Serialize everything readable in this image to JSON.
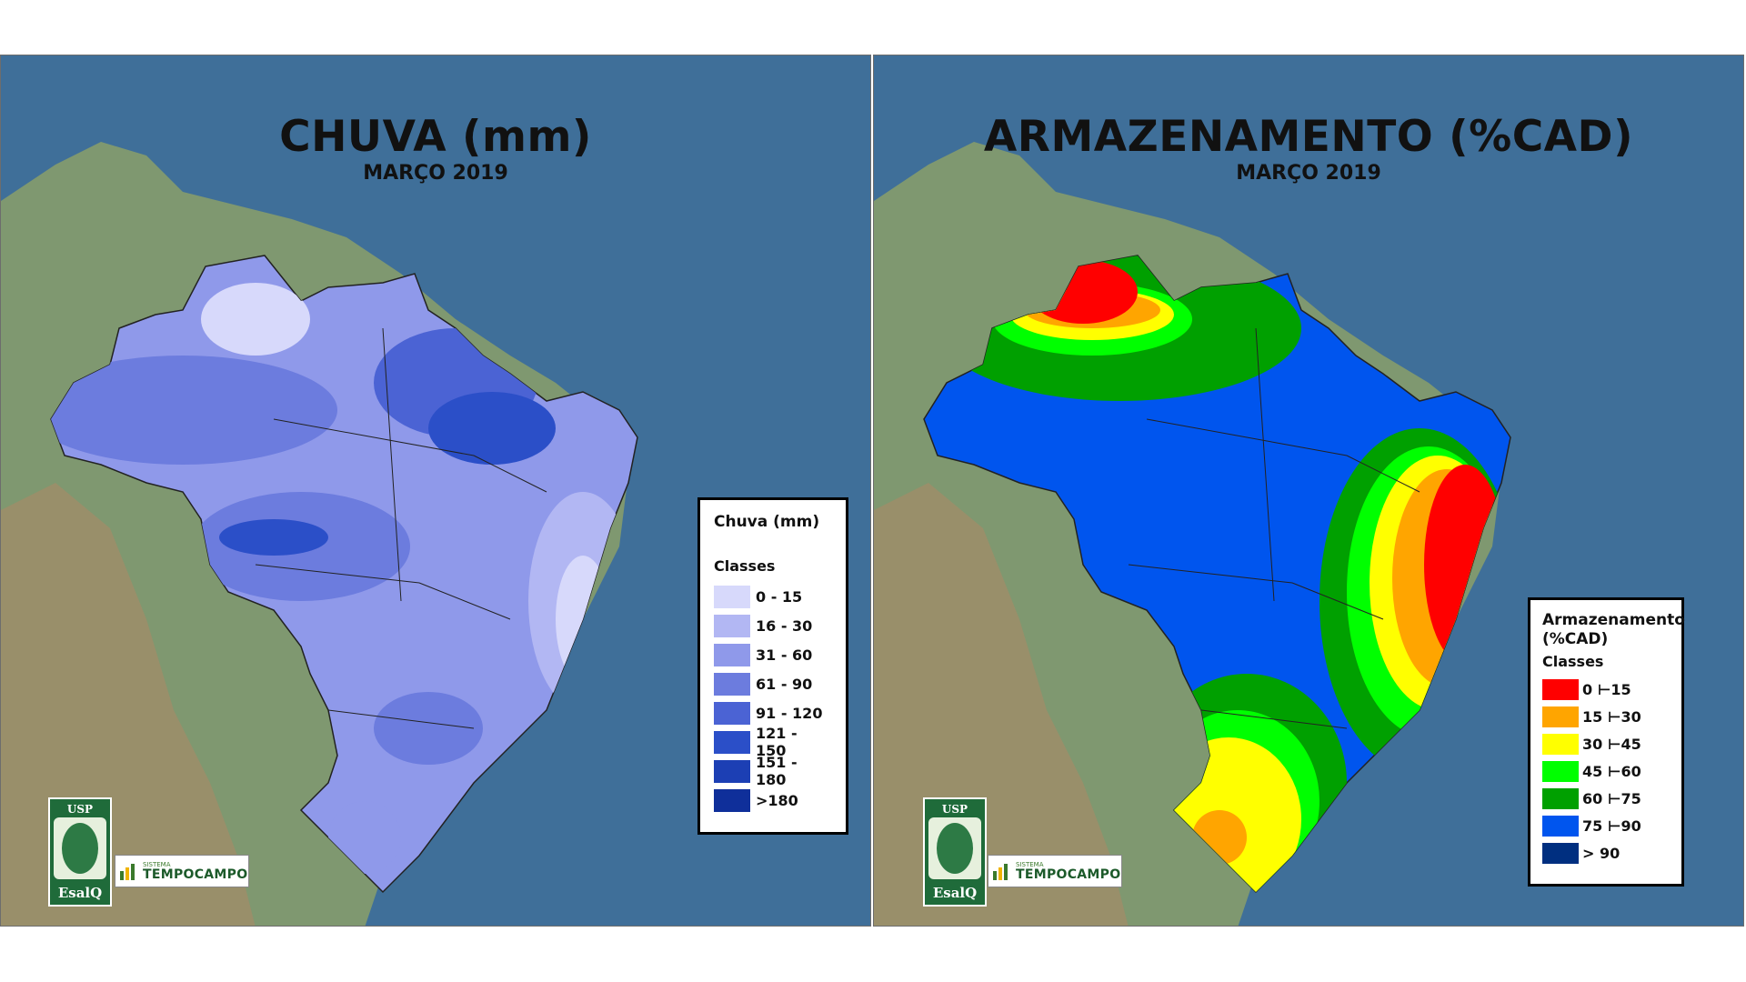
{
  "left_map": {
    "title": "CHUVA (mm)",
    "subtitle": "MARÇO 2019",
    "legend": {
      "title": "Chuva (mm)",
      "classes_label": "Classes",
      "items": [
        {
          "label": "0 - 15",
          "color": "#d7d9fb"
        },
        {
          "label": "16 - 30",
          "color": "#b2b7f3"
        },
        {
          "label": "31 - 60",
          "color": "#8f99ea"
        },
        {
          "label": "61 - 90",
          "color": "#6c7cde"
        },
        {
          "label": "91 - 120",
          "color": "#4b63d4"
        },
        {
          "label": "121 - 150",
          "color": "#2b4fc8"
        },
        {
          "label": "151 - 180",
          "color": "#1c3fb4"
        },
        {
          "label": ">180",
          "color": "#0f2f9a"
        }
      ]
    }
  },
  "right_map": {
    "title": "ARMAZENAMENTO (%CAD)",
    "subtitle": "MARÇO 2019",
    "legend": {
      "title": "Armazenamento (%CAD)",
      "classes_label": "Classes",
      "items": [
        {
          "label": "0 ⊢15",
          "color": "#ff0000"
        },
        {
          "label": "15 ⊢30",
          "color": "#ffa500"
        },
        {
          "label": "30 ⊢45",
          "color": "#ffff00"
        },
        {
          "label": "45 ⊢60",
          "color": "#00ff00"
        },
        {
          "label": "60 ⊢75",
          "color": "#00a000"
        },
        {
          "label": "75 ⊢90",
          "color": "#0055ee"
        },
        {
          "label": "> 90",
          "color": "#002f80"
        }
      ]
    }
  },
  "logos": {
    "usp_top": "USP",
    "usp_bottom": "EsalQ",
    "tc_small": "SISTEMA",
    "tc_big": "TEMPOCAMPO"
  }
}
